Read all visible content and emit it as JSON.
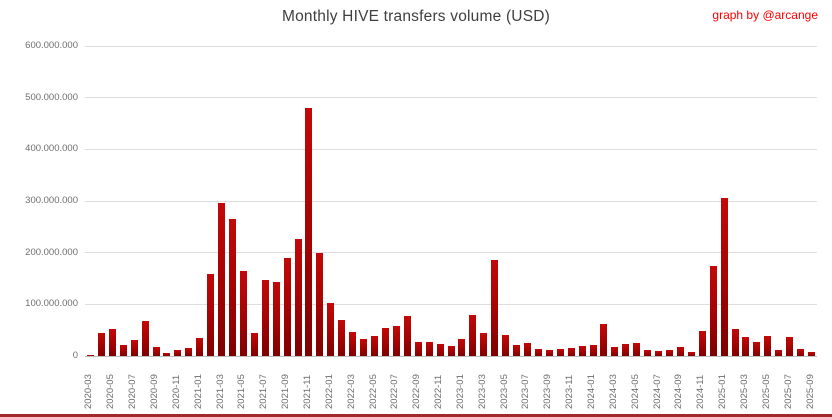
{
  "page": {
    "title": "Monthly HIVE transfers volume (USD)",
    "credit": "graph by @arcange"
  },
  "colors": {
    "bar": "#b00404",
    "credit": "#ff0000",
    "title": "#3f3f3f",
    "gridline": "#dedede",
    "axis_text": "#6e6e6e",
    "bottom_rule": "#a02a2a"
  },
  "chart_data": {
    "type": "bar",
    "title": "Monthly HIVE transfers volume (USD)",
    "unit": "USD (values stored in millions)",
    "ylim": [
      0,
      600000000
    ],
    "grid": "horizontal",
    "legend": "none",
    "y_tick_labels": [
      "0",
      "100.000.000",
      "200.000.000",
      "300.000.000",
      "400.000.000",
      "500.000.000",
      "600.000.000"
    ],
    "x_tick_policy": "label under every second month, rotated 90°",
    "x": [
      "2020-03",
      "2020-04",
      "2020-05",
      "2020-06",
      "2020-07",
      "2020-08",
      "2020-09",
      "2020-10",
      "2020-11",
      "2020-12",
      "2021-01",
      "2021-02",
      "2021-03",
      "2021-04",
      "2021-05",
      "2021-06",
      "2021-07",
      "2021-08",
      "2021-09",
      "2021-10",
      "2021-11",
      "2021-12",
      "2022-01",
      "2022-02",
      "2022-03",
      "2022-04",
      "2022-05",
      "2022-06",
      "2022-07",
      "2022-08",
      "2022-09",
      "2022-10",
      "2022-11",
      "2022-12",
      "2023-01",
      "2023-02",
      "2023-03",
      "2023-04",
      "2023-05",
      "2023-06",
      "2023-07",
      "2023-08",
      "2023-09",
      "2023-10",
      "2023-11",
      "2023-12",
      "2024-01",
      "2024-02",
      "2024-03",
      "2024-04",
      "2024-05",
      "2024-06",
      "2024-07",
      "2024-08",
      "2024-09",
      "2024-10",
      "2024-11",
      "2024-12",
      "2025-01",
      "2025-02",
      "2025-03",
      "2025-04",
      "2025-05",
      "2025-06",
      "2025-07",
      "2025-08",
      "2025-09"
    ],
    "values_millions": [
      2,
      45,
      52,
      22,
      30,
      68,
      17,
      6,
      11,
      16,
      34,
      158,
      296,
      266,
      165,
      45,
      147,
      144,
      190,
      226,
      480,
      200,
      103,
      70,
      46,
      33,
      38,
      55,
      59,
      77,
      27,
      27,
      24,
      19,
      32,
      79,
      45,
      185,
      40,
      21,
      26,
      13,
      11,
      14,
      16,
      20,
      22,
      62,
      18,
      23,
      26,
      12,
      10,
      11,
      18,
      8,
      48,
      174,
      305,
      52,
      37,
      27,
      39,
      12,
      37,
      14,
      7
    ]
  }
}
